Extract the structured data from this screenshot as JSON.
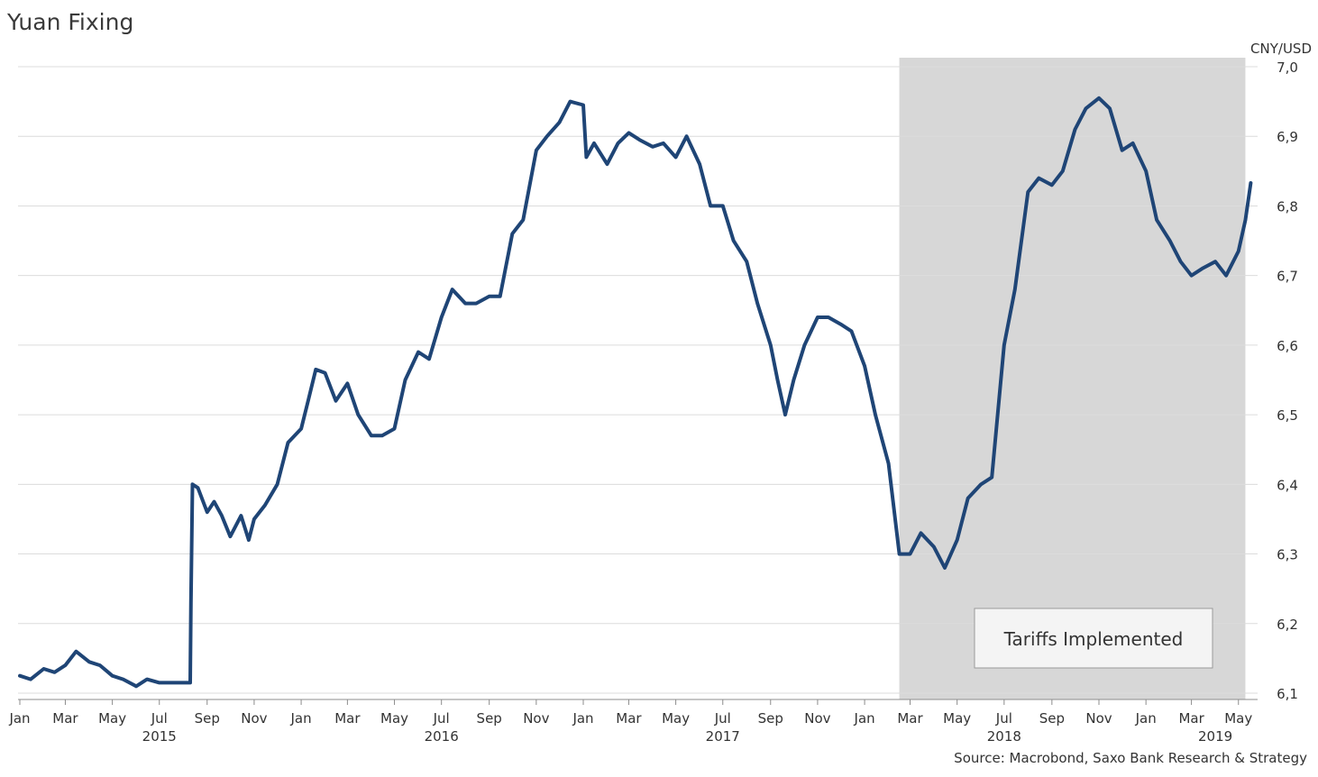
{
  "chart_data": {
    "type": "line",
    "title": "Yuan Fixing",
    "ylabel": "CNY/USD",
    "source": "Source: Macrobond, Saxo Bank Research & Strategy",
    "ylim": [
      6.1,
      7.0
    ],
    "xlim": [
      "2015-01-01",
      "2019-05-20"
    ],
    "yticks": [
      "6,1",
      "6,2",
      "6,3",
      "6,4",
      "6,5",
      "6,6",
      "6,7",
      "6,8",
      "6,9",
      "7,0"
    ],
    "xticks": [
      {
        "date": "2015-01-01",
        "label": "Jan"
      },
      {
        "date": "2015-03-01",
        "label": "Mar"
      },
      {
        "date": "2015-05-01",
        "label": "May"
      },
      {
        "date": "2015-07-01",
        "label": "Jul"
      },
      {
        "date": "2015-09-01",
        "label": "Sep"
      },
      {
        "date": "2015-11-01",
        "label": "Nov"
      },
      {
        "date": "2016-01-01",
        "label": "Jan"
      },
      {
        "date": "2016-03-01",
        "label": "Mar"
      },
      {
        "date": "2016-05-01",
        "label": "May"
      },
      {
        "date": "2016-07-01",
        "label": "Jul"
      },
      {
        "date": "2016-09-01",
        "label": "Sep"
      },
      {
        "date": "2016-11-01",
        "label": "Nov"
      },
      {
        "date": "2017-01-01",
        "label": "Jan"
      },
      {
        "date": "2017-03-01",
        "label": "Mar"
      },
      {
        "date": "2017-05-01",
        "label": "May"
      },
      {
        "date": "2017-07-01",
        "label": "Jul"
      },
      {
        "date": "2017-09-01",
        "label": "Sep"
      },
      {
        "date": "2017-11-01",
        "label": "Nov"
      },
      {
        "date": "2018-01-01",
        "label": "Jan"
      },
      {
        "date": "2018-03-01",
        "label": "Mar"
      },
      {
        "date": "2018-05-01",
        "label": "May"
      },
      {
        "date": "2018-07-01",
        "label": "Jul"
      },
      {
        "date": "2018-09-01",
        "label": "Sep"
      },
      {
        "date": "2018-11-01",
        "label": "Nov"
      },
      {
        "date": "2019-01-01",
        "label": "Jan"
      },
      {
        "date": "2019-03-01",
        "label": "Mar"
      },
      {
        "date": "2019-05-01",
        "label": "May"
      }
    ],
    "year_labels": [
      {
        "date": "2015-07-01",
        "label": "2015"
      },
      {
        "date": "2016-07-01",
        "label": "2016"
      },
      {
        "date": "2017-07-01",
        "label": "2017"
      },
      {
        "date": "2018-07-01",
        "label": "2018"
      },
      {
        "date": "2019-04-01",
        "label": "2019"
      }
    ],
    "shaded_region": {
      "start": "2018-02-15",
      "end": "2019-05-10",
      "label": "Tariffs Implemented"
    },
    "grid": true,
    "line_color": "#1f4576",
    "shade_color": "#d7d7d7",
    "series": [
      {
        "x": [
          "2015-01-01",
          "2015-01-15",
          "2015-02-01",
          "2015-02-15",
          "2015-03-01",
          "2015-03-15",
          "2015-04-01",
          "2015-04-15",
          "2015-05-01",
          "2015-05-15",
          "2015-06-01",
          "2015-06-15",
          "2015-07-01",
          "2015-07-15",
          "2015-08-01",
          "2015-08-10",
          "2015-08-11",
          "2015-08-13",
          "2015-08-20",
          "2015-09-01",
          "2015-09-10",
          "2015-09-20",
          "2015-10-01",
          "2015-10-15",
          "2015-10-25",
          "2015-11-01",
          "2015-11-15",
          "2015-12-01",
          "2015-12-15",
          "2016-01-01",
          "2016-01-10",
          "2016-01-20",
          "2016-02-01",
          "2016-02-15",
          "2016-03-01",
          "2016-03-15",
          "2016-04-01",
          "2016-04-15",
          "2016-05-01",
          "2016-05-15",
          "2016-06-01",
          "2016-06-15",
          "2016-07-01",
          "2016-07-15",
          "2016-08-01",
          "2016-08-15",
          "2016-09-01",
          "2016-09-15",
          "2016-10-01",
          "2016-10-15",
          "2016-11-01",
          "2016-11-15",
          "2016-12-01",
          "2016-12-15",
          "2017-01-01",
          "2017-01-05",
          "2017-01-15",
          "2017-02-01",
          "2017-02-15",
          "2017-03-01",
          "2017-03-15",
          "2017-04-01",
          "2017-04-15",
          "2017-05-01",
          "2017-05-15",
          "2017-06-01",
          "2017-06-15",
          "2017-07-01",
          "2017-07-15",
          "2017-08-01",
          "2017-08-15",
          "2017-09-01",
          "2017-09-10",
          "2017-09-20",
          "2017-10-01",
          "2017-10-15",
          "2017-11-01",
          "2017-11-15",
          "2017-12-01",
          "2017-12-15",
          "2018-01-01",
          "2018-01-15",
          "2018-02-01",
          "2018-02-15",
          "2018-03-01",
          "2018-03-15",
          "2018-04-01",
          "2018-04-15",
          "2018-05-01",
          "2018-05-15",
          "2018-06-01",
          "2018-06-15",
          "2018-07-01",
          "2018-07-15",
          "2018-08-01",
          "2018-08-15",
          "2018-09-01",
          "2018-09-15",
          "2018-10-01",
          "2018-10-15",
          "2018-11-01",
          "2018-11-15",
          "2018-12-01",
          "2018-12-15",
          "2019-01-01",
          "2019-01-15",
          "2019-02-01",
          "2019-02-15",
          "2019-03-01",
          "2019-03-15",
          "2019-04-01",
          "2019-04-15",
          "2019-05-01",
          "2019-05-10",
          "2019-05-17"
        ],
        "values": [
          6.125,
          6.12,
          6.135,
          6.13,
          6.14,
          6.16,
          6.145,
          6.14,
          6.125,
          6.12,
          6.11,
          6.12,
          6.115,
          6.115,
          6.115,
          6.115,
          6.23,
          6.4,
          6.395,
          6.36,
          6.375,
          6.355,
          6.325,
          6.355,
          6.32,
          6.35,
          6.37,
          6.4,
          6.46,
          6.48,
          6.52,
          6.565,
          6.56,
          6.52,
          6.545,
          6.5,
          6.47,
          6.47,
          6.48,
          6.55,
          6.59,
          6.58,
          6.64,
          6.68,
          6.66,
          6.66,
          6.67,
          6.67,
          6.76,
          6.78,
          6.88,
          6.9,
          6.92,
          6.95,
          6.945,
          6.87,
          6.89,
          6.86,
          6.89,
          6.905,
          6.895,
          6.885,
          6.89,
          6.87,
          6.9,
          6.86,
          6.8,
          6.8,
          6.75,
          6.72,
          6.66,
          6.6,
          6.55,
          6.5,
          6.55,
          6.6,
          6.64,
          6.64,
          6.63,
          6.62,
          6.57,
          6.5,
          6.43,
          6.3,
          6.3,
          6.33,
          6.31,
          6.28,
          6.32,
          6.38,
          6.4,
          6.41,
          6.6,
          6.68,
          6.82,
          6.84,
          6.83,
          6.85,
          6.91,
          6.94,
          6.955,
          6.94,
          6.88,
          6.89,
          6.85,
          6.78,
          6.75,
          6.72,
          6.7,
          6.71,
          6.72,
          6.7,
          6.735,
          6.78,
          6.833
        ]
      }
    ]
  }
}
